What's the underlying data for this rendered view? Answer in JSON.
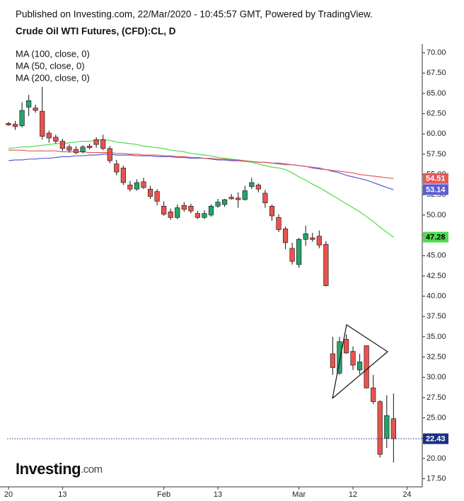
{
  "chart_data": {
    "type": "candlestick",
    "source": "Published on Investing.com, 22/Mar/2020 - 10:45:57 GMT, Powered by TradingView.",
    "title": "Crude Oil WTI Futures, (CFD):CL, D",
    "logo": {
      "text": "Investing",
      "suffix": ".com"
    },
    "categories": [
      "20",
      null,
      null,
      null,
      null,
      null,
      null,
      null,
      "13",
      null,
      null,
      null,
      null,
      null,
      null,
      null,
      null,
      null,
      null,
      null,
      null,
      null,
      null,
      "Feb",
      null,
      null,
      null,
      null,
      null,
      null,
      null,
      "13",
      null,
      null,
      null,
      null,
      null,
      null,
      null,
      null,
      null,
      null,
      null,
      "Mar",
      null,
      null,
      null,
      null,
      null,
      null,
      null,
      "12",
      null,
      null,
      null,
      null,
      null,
      null,
      null,
      "24"
    ],
    "ohlc": {
      "open": [
        61.3,
        61.2,
        61.0,
        63.3,
        63.2,
        62.8,
        60.1,
        59.6,
        59.1,
        58.4,
        58.1,
        57.8,
        58.5,
        59.3,
        59.3,
        58.2,
        56.3,
        55.8,
        53.7,
        53.2,
        54.1,
        53.2,
        52.9,
        51.1,
        50.4,
        49.7,
        51.2,
        51.1,
        50.2,
        49.7,
        50.0,
        51.1,
        51.3,
        52.2,
        52.1,
        51.9,
        53.5,
        53.7,
        52.7,
        51.1,
        49.7,
        48.3,
        45.9,
        43.9,
        47.0,
        47.2,
        47.4,
        46.4,
        32.9,
        30.5,
        34.7,
        33.2,
        30.9,
        33.9,
        28.7,
        27.0,
        22.5,
        24.9,
        null,
        null
      ],
      "high": [
        61.5,
        61.6,
        63.9,
        64.8,
        63.6,
        65.8,
        60.4,
        59.9,
        59.4,
        58.7,
        58.5,
        58.6,
        58.8,
        59.6,
        59.9,
        58.5,
        56.8,
        56.1,
        54.2,
        54.4,
        54.6,
        53.6,
        53.2,
        51.7,
        50.8,
        51.3,
        51.6,
        51.4,
        50.5,
        50.6,
        51.3,
        52.0,
        52.0,
        52.6,
        52.8,
        53.6,
        54.6,
        53.9,
        53.1,
        51.3,
        50.1,
        48.6,
        46.6,
        47.2,
        48.7,
        47.8,
        48.1,
        46.8,
        35.0,
        35.0,
        35.3,
        33.8,
        32.9,
        33.9,
        30.3,
        27.2,
        27.8,
        28.0,
        null,
        null
      ],
      "low": [
        61.0,
        60.5,
        60.8,
        62.2,
        62.6,
        59.3,
        58.9,
        58.8,
        57.9,
        57.7,
        57.5,
        57.6,
        58.1,
        58.3,
        58.0,
        56.4,
        54.9,
        53.7,
        52.9,
        53.0,
        53.2,
        52.0,
        51.2,
        49.9,
        49.4,
        49.5,
        50.4,
        50.2,
        49.5,
        49.5,
        49.8,
        50.9,
        51.0,
        51.9,
        50.9,
        51.8,
        53.2,
        52.8,
        50.9,
        49.3,
        47.9,
        45.8,
        43.9,
        43.5,
        46.2,
        46.7,
        45.9,
        41.2,
        30.3,
        30.3,
        32.9,
        30.9,
        30.4,
        28.6,
        26.7,
        20.1,
        21.3,
        19.5,
        null,
        null
      ],
      "close": [
        61.1,
        60.9,
        62.9,
        64.1,
        62.9,
        59.7,
        59.5,
        59.1,
        58.2,
        58.0,
        57.7,
        58.4,
        58.3,
        58.7,
        58.2,
        56.7,
        55.3,
        54.0,
        53.2,
        54.0,
        53.4,
        52.3,
        51.7,
        50.1,
        49.7,
        50.9,
        50.7,
        50.5,
        49.7,
        50.2,
        51.1,
        51.6,
        51.9,
        52.0,
        51.9,
        53.0,
        54.0,
        53.2,
        51.5,
        49.9,
        48.2,
        46.6,
        44.3,
        47.0,
        47.7,
        47.0,
        46.3,
        41.3,
        31.2,
        34.4,
        33.0,
        31.5,
        31.9,
        28.7,
        27.0,
        20.5,
        25.3,
        22.43,
        null,
        null
      ]
    },
    "up_color": "#26a269",
    "down_color": "#e8534f",
    "last_price_color": "#1c2f86",
    "series": [
      {
        "name": "MA (100, close, 0)",
        "color": "#5b5bd6",
        "badge_text_color": "#ffffff",
        "values": [
          56.7,
          56.8,
          56.8,
          56.9,
          56.9,
          57.0,
          57.0,
          57.1,
          57.2,
          57.2,
          57.3,
          57.3,
          57.4,
          57.4,
          57.5,
          57.5,
          57.4,
          57.4,
          57.4,
          57.3,
          57.3,
          57.3,
          57.2,
          57.2,
          57.2,
          57.1,
          57.1,
          57.0,
          57.0,
          57.0,
          56.9,
          56.8,
          56.8,
          56.7,
          56.7,
          56.6,
          56.6,
          56.5,
          56.5,
          56.4,
          56.4,
          56.3,
          56.2,
          56.1,
          56.0,
          55.8,
          55.7,
          55.6,
          55.4,
          55.2,
          54.9,
          54.7,
          54.5,
          54.3,
          54.0,
          53.7,
          53.4,
          53.14,
          null,
          null
        ]
      },
      {
        "name": "MA (50, close, 0)",
        "color": "#4fdb4f",
        "badge_text_color": "#000000",
        "values": [
          58.2,
          58.3,
          58.4,
          58.4,
          58.5,
          58.6,
          58.7,
          58.8,
          58.8,
          58.9,
          59.0,
          59.1,
          59.1,
          59.2,
          59.3,
          59.2,
          59.0,
          58.9,
          58.8,
          58.7,
          58.5,
          58.4,
          58.3,
          58.2,
          58.0,
          57.9,
          57.8,
          57.6,
          57.5,
          57.4,
          57.3,
          57.1,
          57.0,
          56.9,
          56.8,
          56.6,
          56.5,
          56.3,
          56.1,
          55.9,
          55.8,
          55.6,
          55.2,
          54.7,
          54.3,
          53.8,
          53.4,
          52.9,
          52.4,
          51.9,
          51.4,
          50.9,
          50.4,
          49.8,
          49.2,
          48.5,
          47.9,
          47.28,
          null,
          null
        ]
      },
      {
        "name": "MA (200, close, 0)",
        "color": "#e35a5a",
        "badge_text_color": "#ffffff",
        "values": [
          58.0,
          58.0,
          58.0,
          57.9,
          57.9,
          57.9,
          57.9,
          57.9,
          57.8,
          57.8,
          57.8,
          57.8,
          57.7,
          57.7,
          57.7,
          57.7,
          57.6,
          57.6,
          57.5,
          57.5,
          57.4,
          57.4,
          57.4,
          57.3,
          57.3,
          57.2,
          57.2,
          57.1,
          57.1,
          57.0,
          57.0,
          56.9,
          56.9,
          56.8,
          56.8,
          56.7,
          56.6,
          56.5,
          56.5,
          56.4,
          56.3,
          56.2,
          56.2,
          56.1,
          56.0,
          55.9,
          55.8,
          55.6,
          55.5,
          55.4,
          55.3,
          55.2,
          55.0,
          54.9,
          54.8,
          54.7,
          54.6,
          54.51,
          null,
          null
        ]
      }
    ],
    "ylim": [
      16.5,
      71.1
    ],
    "yticks": [
      {
        "value": 17.5,
        "label": "17.50"
      },
      {
        "value": 20,
        "label": "20.00"
      },
      {
        "value": 22.5,
        "label": "22.50"
      },
      {
        "value": 25,
        "label": "25.00"
      },
      {
        "value": 27.5,
        "label": "27.50"
      },
      {
        "value": 30,
        "label": "30.00"
      },
      {
        "value": 32.5,
        "label": "32.50"
      },
      {
        "value": 35,
        "label": "35.00"
      },
      {
        "value": 37.5,
        "label": "37.50"
      },
      {
        "value": 40,
        "label": "40.00"
      },
      {
        "value": 42.5,
        "label": "42.50"
      },
      {
        "value": 45,
        "label": "45.00"
      },
      {
        "value": 47.5,
        "label": "47.50"
      },
      {
        "value": 50,
        "label": "50.00"
      },
      {
        "value": 52.5,
        "label": "52.50"
      },
      {
        "value": 55,
        "label": "55.00"
      },
      {
        "value": 57.5,
        "label": "57.50"
      },
      {
        "value": 60,
        "label": "60.00"
      },
      {
        "value": 62.5,
        "label": "62.50"
      },
      {
        "value": 65,
        "label": "65.00"
      },
      {
        "value": 67.5,
        "label": "67.50"
      },
      {
        "value": 70,
        "label": "70.00"
      }
    ],
    "grid": false
  }
}
